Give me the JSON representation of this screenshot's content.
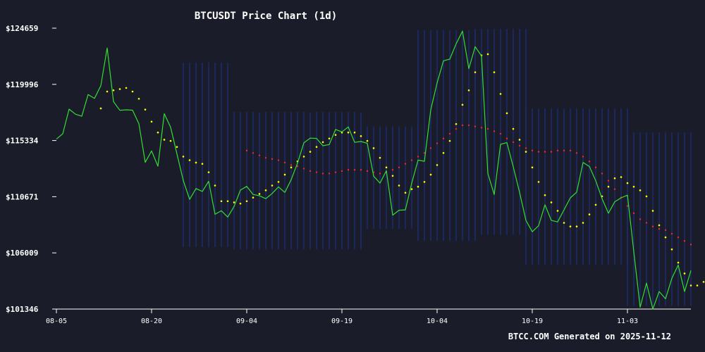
{
  "chart_data": {
    "type": "line",
    "title": "BTCUSDT Price Chart (1d)",
    "footer": "BTCC.COM Generated on 2025-11-12",
    "y_tick_labels": [
      "$124659",
      "$119996",
      "$115334",
      "$110671",
      "$106009",
      "$101346"
    ],
    "y_ticks": [
      124659,
      119996,
      115334,
      110671,
      106009,
      101346
    ],
    "ylim": [
      101346,
      124659
    ],
    "x_tick_labels": [
      "08-05",
      "08-20",
      "09-04",
      "09-19",
      "10-04",
      "10-19",
      "11-03"
    ],
    "x_tick_index": [
      0,
      15,
      30,
      45,
      60,
      75,
      90
    ],
    "xlim": [
      0,
      100
    ],
    "colors": {
      "background": "#1a1d29",
      "axis": "#ffffff",
      "price": "#33dd33",
      "short_ma": "#ffff00",
      "long_ma": "#ff2222",
      "volume_bars": "#1c2a66"
    },
    "series": [
      {
        "key": "price",
        "style": "line",
        "values": [
          115450,
          115890,
          117940,
          117520,
          117350,
          119150,
          118830,
          119880,
          123020,
          118560,
          117840,
          117880,
          117850,
          116730,
          113520,
          114470,
          113200,
          117560,
          116430,
          114220,
          112010,
          110450,
          111350,
          111110,
          111950,
          109210,
          109500,
          108980,
          109860,
          111220,
          111530,
          110860,
          110750,
          110510,
          110940,
          111490,
          111030,
          112080,
          113460,
          115140,
          115530,
          115510,
          114900,
          115000,
          116250,
          116050,
          116460,
          115180,
          115250,
          115100,
          112380,
          111800,
          112830,
          109140,
          109550,
          109580,
          111800,
          113710,
          113610,
          117880,
          120120,
          121950,
          122090,
          123360,
          124410,
          121300,
          123120,
          122350,
          112600,
          110850,
          115020,
          115160,
          113160,
          111030,
          108710,
          107760,
          108270,
          110000,
          108700,
          108580,
          109580,
          110580,
          111050,
          113510,
          113180,
          112000,
          110500,
          109300,
          110250,
          110580,
          110800,
          106100,
          101500,
          103500,
          101350,
          102800,
          102200,
          103900,
          105000,
          102800,
          104550
        ]
      },
      {
        "key": "short_ma",
        "style": "dotted",
        "start_index": 7,
        "values": [
          118000,
          119400,
          119500,
          119600,
          119700,
          119400,
          118800,
          117900,
          116900,
          116000,
          115400,
          115300,
          114800,
          114000,
          113700,
          113500,
          113400,
          112700,
          111600,
          110300,
          110300,
          110200,
          110100,
          110300,
          110600,
          110900,
          111200,
          111600,
          111900,
          112500,
          113100,
          113600,
          114000,
          114400,
          114800,
          115200,
          115500,
          115800,
          116000,
          116000,
          116000,
          115700,
          115300,
          114700,
          113900,
          113100,
          112400,
          111600,
          111000,
          111300,
          111500,
          111900,
          112500,
          113300,
          114300,
          115300,
          116700,
          118300,
          119500,
          121000,
          122400,
          122500,
          121000,
          119200,
          117600,
          116300,
          115400,
          114400,
          113100,
          111900,
          110800,
          110200,
          109500,
          108500,
          108200,
          108200,
          108500,
          109200,
          110000,
          110700,
          111500,
          112200,
          112300,
          111800,
          111500,
          111200,
          110700,
          109500,
          108300,
          107300,
          106300,
          105200,
          104300,
          103300,
          103300,
          103600
        ]
      },
      {
        "key": "long_ma",
        "style": "dotted",
        "start_index": 30,
        "values": [
          114500,
          114300,
          114100,
          113900,
          113800,
          113700,
          113500,
          113300,
          113200,
          113000,
          112800,
          112700,
          112600,
          112600,
          112700,
          112800,
          112900,
          112900,
          112900,
          112800,
          112700,
          112600,
          112700,
          112900,
          113100,
          113400,
          113700,
          114000,
          114300,
          114700,
          115100,
          115500,
          115900,
          116300,
          116600,
          116600,
          116500,
          116400,
          116300,
          116100,
          115900,
          115500,
          115200,
          114900,
          114700,
          114500,
          114400,
          114400,
          114400,
          114500,
          114500,
          114500,
          114300,
          114000,
          113600,
          113100,
          112600,
          112000,
          111300,
          110600,
          109900,
          109300,
          108800,
          108500,
          108200,
          108000,
          107900,
          107600,
          107300,
          107000,
          106700
        ]
      },
      {
        "key": "volume",
        "style": "bars",
        "start_index": 20,
        "values": [
          0,
          0,
          0,
          0,
          0,
          0,
          0,
          0,
          0,
          0,
          0,
          0,
          0,
          0,
          0,
          0,
          0,
          0,
          0,
          0,
          0,
          0,
          0,
          0,
          0,
          0,
          0,
          0,
          0,
          0,
          0,
          0,
          0,
          0,
          0,
          0,
          0,
          0,
          0,
          0,
          0,
          0,
          0,
          0,
          0,
          0,
          0,
          0,
          0,
          0,
          0,
          0,
          0,
          0,
          0,
          0,
          0,
          0,
          0,
          0,
          0,
          0,
          0,
          0,
          0,
          0,
          0,
          0,
          0,
          0,
          0,
          0,
          0,
          0,
          0,
          0,
          0,
          0,
          0,
          0,
          0
        ]
      }
    ],
    "bands": [
      {
        "start_index": 20,
        "end_index": 27,
        "y_top": 121800,
        "y_bottom": 106500
      },
      {
        "start_index": 28,
        "end_index": 48,
        "y_top": 117700,
        "y_bottom": 106300
      },
      {
        "start_index": 48,
        "end_index": 57,
        "y_top": 116500,
        "y_bottom": 108000
      },
      {
        "start_index": 57,
        "end_index": 66,
        "y_top": 124500,
        "y_bottom": 107000
      },
      {
        "start_index": 66,
        "end_index": 74,
        "y_top": 124600,
        "y_bottom": 107500
      },
      {
        "start_index": 74,
        "end_index": 90,
        "y_top": 118000,
        "y_bottom": 105000
      },
      {
        "start_index": 90,
        "end_index": 100,
        "y_top": 116000,
        "y_bottom": 101600
      }
    ]
  }
}
